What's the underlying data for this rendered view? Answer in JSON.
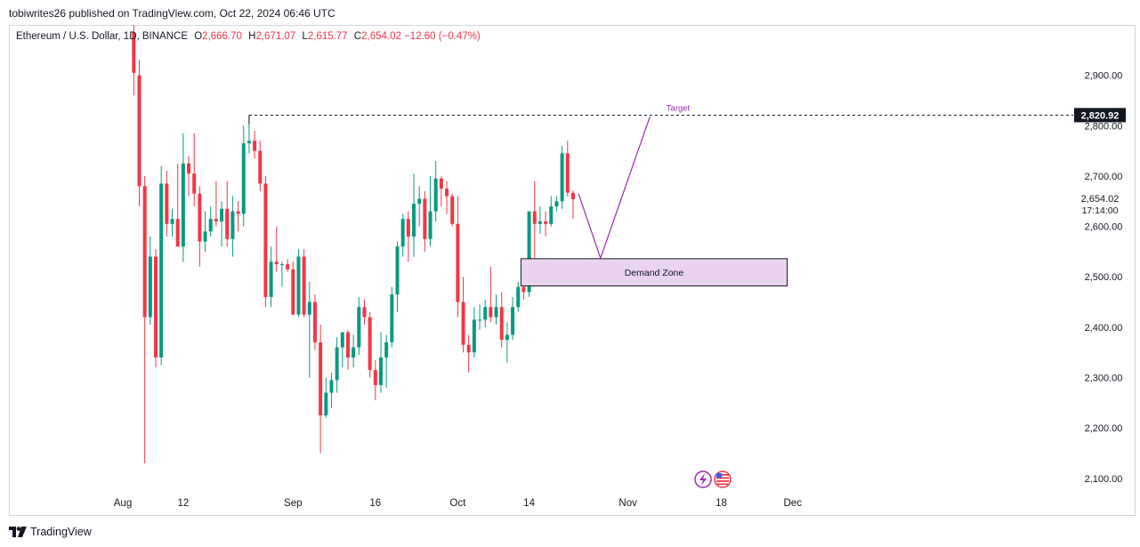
{
  "header": {
    "publish_line": "tobiwrites26 published on TradingView.com, Oct 22, 2024 06:46 UTC"
  },
  "legend": {
    "symbol": "Ethereum / U.S. Dollar, 1D, BINANCE",
    "open_label": "O",
    "open_value": "2,666.70",
    "high_label": "H",
    "high_value": "2,671.07",
    "low_label": "L",
    "low_value": "2,615.77",
    "close_label": "C",
    "close_value": "2,654.02",
    "change": "−12.60 (−0.47%)"
  },
  "footer": {
    "brand": "TradingView"
  },
  "colors": {
    "up": "#089981",
    "down": "#f23645",
    "annotation": "#9c27b0",
    "zone_fill": "#ead3ee",
    "text": "#131722"
  },
  "chart_data": {
    "type": "candlestick",
    "ylim": [
      2075,
      3000
    ],
    "y_ticks": [
      {
        "value": 2100,
        "label": "2,100.00"
      },
      {
        "value": 2200,
        "label": "2,200.00"
      },
      {
        "value": 2300,
        "label": "2,300.00"
      },
      {
        "value": 2400,
        "label": "2,400.00"
      },
      {
        "value": 2500,
        "label": "2,500.00"
      },
      {
        "value": 2600,
        "label": "2,600.00"
      },
      {
        "value": 2700,
        "label": "2,700.00"
      },
      {
        "value": 2800,
        "label": "2,800.00"
      },
      {
        "value": 2900,
        "label": "2,900.00"
      }
    ],
    "x_ticks": [
      {
        "date": "2024-08-01",
        "label": "Aug"
      },
      {
        "date": "2024-08-12",
        "label": "12"
      },
      {
        "date": "2024-09-01",
        "label": "Sep"
      },
      {
        "date": "2024-09-16",
        "label": "16"
      },
      {
        "date": "2024-10-01",
        "label": "Oct"
      },
      {
        "date": "2024-10-14",
        "label": "14"
      },
      {
        "date": "2024-11-01",
        "label": "Nov"
      },
      {
        "date": "2024-11-18",
        "label": "18"
      },
      {
        "date": "2024-12-01",
        "label": "Dec"
      }
    ],
    "candles": [
      {
        "date": "2024-08-03",
        "open": 2985,
        "high": 3010,
        "low": 2860,
        "close": 2905
      },
      {
        "date": "2024-08-04",
        "open": 2900,
        "high": 2930,
        "low": 2640,
        "close": 2680
      },
      {
        "date": "2024-08-05",
        "open": 2680,
        "high": 2700,
        "low": 2130,
        "close": 2420
      },
      {
        "date": "2024-08-06",
        "open": 2420,
        "high": 2580,
        "low": 2405,
        "close": 2540
      },
      {
        "date": "2024-08-07",
        "open": 2540,
        "high": 2555,
        "low": 2320,
        "close": 2340
      },
      {
        "date": "2024-08-08",
        "open": 2340,
        "high": 2720,
        "low": 2325,
        "close": 2685
      },
      {
        "date": "2024-08-09",
        "open": 2685,
        "high": 2710,
        "low": 2580,
        "close": 2605
      },
      {
        "date": "2024-08-10",
        "open": 2605,
        "high": 2635,
        "low": 2580,
        "close": 2615
      },
      {
        "date": "2024-08-11",
        "open": 2615,
        "high": 2725,
        "low": 2560,
        "close": 2560
      },
      {
        "date": "2024-08-12",
        "open": 2560,
        "high": 2785,
        "low": 2530,
        "close": 2725
      },
      {
        "date": "2024-08-13",
        "open": 2725,
        "high": 2740,
        "low": 2660,
        "close": 2705
      },
      {
        "date": "2024-08-14",
        "open": 2705,
        "high": 2785,
        "low": 2640,
        "close": 2665
      },
      {
        "date": "2024-08-15",
        "open": 2665,
        "high": 2680,
        "low": 2520,
        "close": 2570
      },
      {
        "date": "2024-08-16",
        "open": 2570,
        "high": 2630,
        "low": 2550,
        "close": 2590
      },
      {
        "date": "2024-08-17",
        "open": 2590,
        "high": 2640,
        "low": 2580,
        "close": 2615
      },
      {
        "date": "2024-08-18",
        "open": 2615,
        "high": 2690,
        "low": 2600,
        "close": 2610
      },
      {
        "date": "2024-08-19",
        "open": 2610,
        "high": 2650,
        "low": 2560,
        "close": 2635
      },
      {
        "date": "2024-08-20",
        "open": 2635,
        "high": 2690,
        "low": 2560,
        "close": 2575
      },
      {
        "date": "2024-08-21",
        "open": 2575,
        "high": 2660,
        "low": 2540,
        "close": 2630
      },
      {
        "date": "2024-08-22",
        "open": 2630,
        "high": 2650,
        "low": 2590,
        "close": 2625
      },
      {
        "date": "2024-08-23",
        "open": 2625,
        "high": 2800,
        "low": 2600,
        "close": 2765
      },
      {
        "date": "2024-08-24",
        "open": 2765,
        "high": 2820,
        "low": 2745,
        "close": 2770
      },
      {
        "date": "2024-08-25",
        "open": 2770,
        "high": 2790,
        "low": 2735,
        "close": 2750
      },
      {
        "date": "2024-08-26",
        "open": 2750,
        "high": 2770,
        "low": 2670,
        "close": 2685
      },
      {
        "date": "2024-08-27",
        "open": 2685,
        "high": 2700,
        "low": 2440,
        "close": 2460
      },
      {
        "date": "2024-08-28",
        "open": 2460,
        "high": 2560,
        "low": 2440,
        "close": 2530
      },
      {
        "date": "2024-08-29",
        "open": 2530,
        "high": 2600,
        "low": 2510,
        "close": 2525
      },
      {
        "date": "2024-08-30",
        "open": 2525,
        "high": 2530,
        "low": 2480,
        "close": 2525
      },
      {
        "date": "2024-08-31",
        "open": 2525,
        "high": 2535,
        "low": 2510,
        "close": 2515
      },
      {
        "date": "2024-09-01",
        "open": 2515,
        "high": 2530,
        "low": 2430,
        "close": 2425
      },
      {
        "date": "2024-09-02",
        "open": 2425,
        "high": 2555,
        "low": 2420,
        "close": 2540
      },
      {
        "date": "2024-09-03",
        "open": 2540,
        "high": 2555,
        "low": 2420,
        "close": 2425
      },
      {
        "date": "2024-09-04",
        "open": 2425,
        "high": 2490,
        "low": 2300,
        "close": 2450
      },
      {
        "date": "2024-09-05",
        "open": 2450,
        "high": 2465,
        "low": 2355,
        "close": 2370
      },
      {
        "date": "2024-09-06",
        "open": 2370,
        "high": 2405,
        "low": 2150,
        "close": 2225
      },
      {
        "date": "2024-09-07",
        "open": 2225,
        "high": 2300,
        "low": 2220,
        "close": 2270
      },
      {
        "date": "2024-09-08",
        "open": 2270,
        "high": 2310,
        "low": 2240,
        "close": 2295
      },
      {
        "date": "2024-09-09",
        "open": 2295,
        "high": 2380,
        "low": 2270,
        "close": 2360
      },
      {
        "date": "2024-09-10",
        "open": 2360,
        "high": 2390,
        "low": 2320,
        "close": 2390
      },
      {
        "date": "2024-09-11",
        "open": 2390,
        "high": 2395,
        "low": 2315,
        "close": 2340
      },
      {
        "date": "2024-09-12",
        "open": 2340,
        "high": 2385,
        "low": 2320,
        "close": 2360
      },
      {
        "date": "2024-09-13",
        "open": 2360,
        "high": 2460,
        "low": 2345,
        "close": 2440
      },
      {
        "date": "2024-09-14",
        "open": 2440,
        "high": 2455,
        "low": 2405,
        "close": 2420
      },
      {
        "date": "2024-09-15",
        "open": 2420,
        "high": 2430,
        "low": 2300,
        "close": 2315
      },
      {
        "date": "2024-09-16",
        "open": 2315,
        "high": 2335,
        "low": 2255,
        "close": 2285
      },
      {
        "date": "2024-09-17",
        "open": 2285,
        "high": 2390,
        "low": 2270,
        "close": 2340
      },
      {
        "date": "2024-09-18",
        "open": 2340,
        "high": 2385,
        "low": 2280,
        "close": 2370
      },
      {
        "date": "2024-09-19",
        "open": 2370,
        "high": 2480,
        "low": 2360,
        "close": 2465
      },
      {
        "date": "2024-09-20",
        "open": 2465,
        "high": 2570,
        "low": 2430,
        "close": 2560
      },
      {
        "date": "2024-09-21",
        "open": 2560,
        "high": 2625,
        "low": 2540,
        "close": 2615
      },
      {
        "date": "2024-09-22",
        "open": 2615,
        "high": 2630,
        "low": 2530,
        "close": 2580
      },
      {
        "date": "2024-09-23",
        "open": 2580,
        "high": 2705,
        "low": 2540,
        "close": 2645
      },
      {
        "date": "2024-09-24",
        "open": 2645,
        "high": 2680,
        "low": 2600,
        "close": 2655
      },
      {
        "date": "2024-09-25",
        "open": 2655,
        "high": 2670,
        "low": 2550,
        "close": 2575
      },
      {
        "date": "2024-09-26",
        "open": 2575,
        "high": 2700,
        "low": 2560,
        "close": 2630
      },
      {
        "date": "2024-09-27",
        "open": 2630,
        "high": 2730,
        "low": 2610,
        "close": 2695
      },
      {
        "date": "2024-09-28",
        "open": 2695,
        "high": 2700,
        "low": 2640,
        "close": 2675
      },
      {
        "date": "2024-09-29",
        "open": 2675,
        "high": 2690,
        "low": 2625,
        "close": 2660
      },
      {
        "date": "2024-09-30",
        "open": 2660,
        "high": 2665,
        "low": 2600,
        "close": 2605
      },
      {
        "date": "2024-10-01",
        "open": 2605,
        "high": 2660,
        "low": 2420,
        "close": 2450
      },
      {
        "date": "2024-10-02",
        "open": 2450,
        "high": 2500,
        "low": 2350,
        "close": 2365
      },
      {
        "date": "2024-10-03",
        "open": 2365,
        "high": 2385,
        "low": 2310,
        "close": 2350
      },
      {
        "date": "2024-10-04",
        "open": 2350,
        "high": 2440,
        "low": 2340,
        "close": 2415
      },
      {
        "date": "2024-10-05",
        "open": 2415,
        "high": 2445,
        "low": 2395,
        "close": 2415
      },
      {
        "date": "2024-10-06",
        "open": 2415,
        "high": 2455,
        "low": 2400,
        "close": 2440
      },
      {
        "date": "2024-10-07",
        "open": 2440,
        "high": 2520,
        "low": 2410,
        "close": 2420
      },
      {
        "date": "2024-10-08",
        "open": 2420,
        "high": 2465,
        "low": 2405,
        "close": 2440
      },
      {
        "date": "2024-10-09",
        "open": 2440,
        "high": 2470,
        "low": 2360,
        "close": 2375
      },
      {
        "date": "2024-10-10",
        "open": 2375,
        "high": 2410,
        "low": 2330,
        "close": 2385
      },
      {
        "date": "2024-10-11",
        "open": 2385,
        "high": 2460,
        "low": 2375,
        "close": 2440
      },
      {
        "date": "2024-10-12",
        "open": 2440,
        "high": 2490,
        "low": 2430,
        "close": 2480
      },
      {
        "date": "2024-10-13",
        "open": 2480,
        "high": 2490,
        "low": 2455,
        "close": 2470
      },
      {
        "date": "2024-10-14",
        "open": 2470,
        "high": 2630,
        "low": 2460,
        "close": 2630
      },
      {
        "date": "2024-10-15",
        "open": 2630,
        "high": 2690,
        "low": 2525,
        "close": 2605
      },
      {
        "date": "2024-10-16",
        "open": 2605,
        "high": 2640,
        "low": 2585,
        "close": 2610
      },
      {
        "date": "2024-10-17",
        "open": 2610,
        "high": 2630,
        "low": 2580,
        "close": 2605
      },
      {
        "date": "2024-10-18",
        "open": 2605,
        "high": 2660,
        "low": 2600,
        "close": 2640
      },
      {
        "date": "2024-10-19",
        "open": 2640,
        "high": 2660,
        "low": 2630,
        "close": 2650
      },
      {
        "date": "2024-10-20",
        "open": 2650,
        "high": 2760,
        "low": 2635,
        "close": 2745
      },
      {
        "date": "2024-10-21",
        "open": 2745,
        "high": 2770,
        "low": 2660,
        "close": 2667
      },
      {
        "date": "2024-10-22",
        "open": 2666.7,
        "high": 2671.07,
        "low": 2615.77,
        "close": 2654.02
      }
    ],
    "last_price": {
      "value": 2654.02,
      "label": "2,654.02",
      "countdown": "17:14:00"
    },
    "target": {
      "value": 2820.92,
      "label": "2,820.92",
      "text": "Target",
      "start_date": "2024-08-24"
    },
    "demand_zone": {
      "label": "Demand Zone",
      "low": 2482,
      "high": 2536,
      "start_date": "2024-10-13",
      "end_date": "2024-11-30"
    },
    "projection_path": [
      {
        "date": "2024-10-23",
        "value": 2665
      },
      {
        "date": "2024-10-27",
        "value": 2537
      },
      {
        "date": "2024-11-05",
        "value": 2818
      }
    ]
  }
}
